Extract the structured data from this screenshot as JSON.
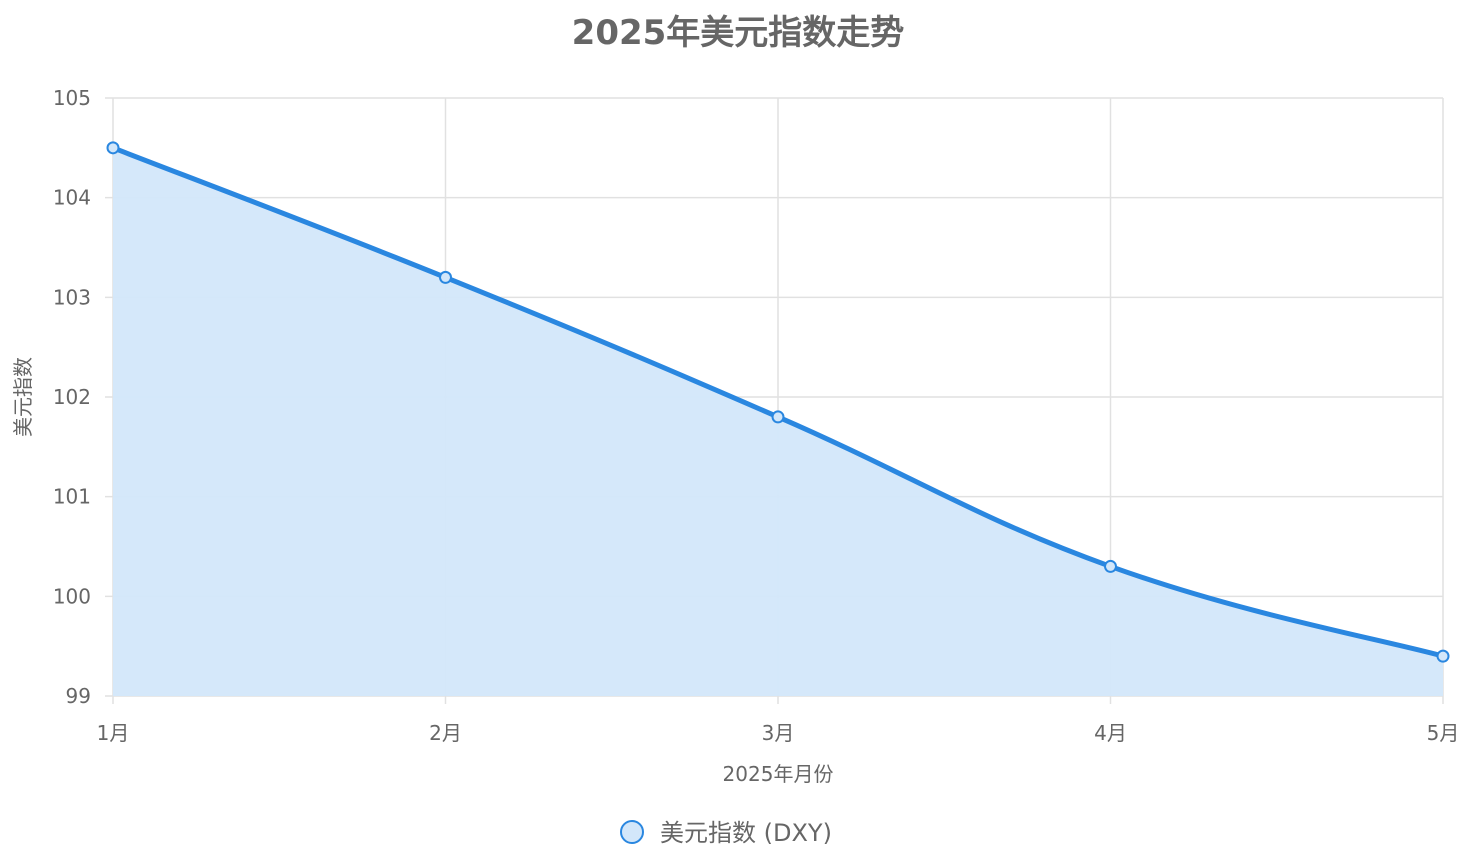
{
  "chart_data": {
    "type": "area",
    "title": "2025年美元指数走势",
    "xlabel": "2025年月份",
    "ylabel": "美元指数",
    "categories": [
      "1月",
      "2月",
      "3月",
      "4月",
      "5月"
    ],
    "series": [
      {
        "name": "美元指数 (DXY)",
        "values": [
          104.5,
          103.2,
          101.8,
          100.3,
          99.4
        ]
      }
    ],
    "ylim": [
      99,
      105
    ],
    "yticks": [
      "99",
      "100",
      "101",
      "102",
      "103",
      "104",
      "105"
    ],
    "grid": true,
    "legend": "bottom",
    "colors": {
      "line": "#2a87e0",
      "fill": "#d3e7fa",
      "grid": "#e1e1e1",
      "text": "#666666"
    }
  }
}
